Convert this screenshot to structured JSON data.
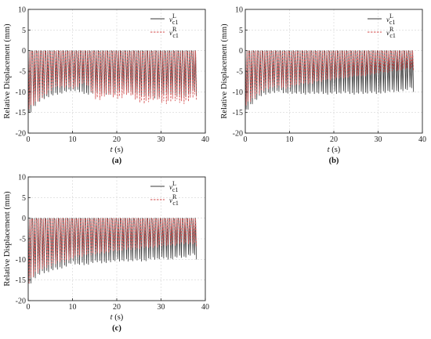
{
  "chart_data": [
    {
      "id": "a",
      "type": "line",
      "panel_label": "(a)",
      "xlabel_var": "t",
      "xlabel_unit": " (s)",
      "ylabel": "Relative Displacement (mm)",
      "xlim": [
        0,
        40
      ],
      "ylim": [
        -20,
        10
      ],
      "xticks": [
        0,
        10,
        20,
        30,
        40
      ],
      "yticks": [
        -20,
        -15,
        -10,
        -5,
        0,
        5,
        10
      ],
      "grid": true,
      "legend_position": "top-right",
      "x": [
        0,
        1,
        2,
        3,
        4,
        5,
        6,
        7,
        8,
        9,
        10,
        11,
        12,
        13,
        14,
        15,
        16,
        17,
        18,
        19,
        20,
        21,
        22,
        23,
        24,
        25,
        26,
        27,
        28,
        29,
        30,
        31,
        32,
        33,
        34,
        35,
        36,
        37,
        38
      ],
      "series": [
        {
          "name": "v",
          "sup": "L",
          "sub": "c1",
          "color": "#3a3a3a",
          "dash": "",
          "values": [
            -18,
            -16,
            -14.5,
            -13.5,
            -13,
            -12.5,
            -12,
            -12,
            -11.5,
            -11,
            -11,
            -11,
            -11.5,
            -12,
            -12,
            -11.5,
            -11.5,
            -12,
            -12,
            -12,
            -11.5,
            -11,
            -11,
            -11.5,
            -12,
            -12,
            -12.5,
            -12.5,
            -13,
            -13,
            -12.5,
            -12,
            -12,
            -12,
            -12.5,
            -13,
            -12.5,
            -11.5,
            -11
          ]
        },
        {
          "name": "v",
          "sup": "R",
          "sub": "c1",
          "color": "#d24a4a",
          "dash": "2.5,1.5",
          "values": [
            -16,
            -15,
            -14,
            -13,
            -12,
            -11,
            -10,
            -10,
            -10,
            -10,
            -10.5,
            -10,
            -9,
            -9,
            -10.5,
            -13,
            -13.5,
            -12.5,
            -12,
            -12.5,
            -13,
            -13,
            -12,
            -12,
            -13,
            -14,
            -14.5,
            -14,
            -13.5,
            -13,
            -14,
            -14.5,
            -14,
            -13.5,
            -14,
            -14.5,
            -14,
            -13,
            -12
          ]
        }
      ]
    },
    {
      "id": "b",
      "type": "line",
      "panel_label": "(b)",
      "xlabel_var": "t",
      "xlabel_unit": " (s)",
      "ylabel": "Relative Displacement (mm)",
      "xlim": [
        0,
        40
      ],
      "ylim": [
        -20,
        10
      ],
      "xticks": [
        0,
        10,
        20,
        30,
        40
      ],
      "yticks": [
        -20,
        -15,
        -10,
        -5,
        0,
        5,
        10
      ],
      "grid": true,
      "legend_position": "top-right",
      "x": [
        0,
        1,
        2,
        3,
        4,
        5,
        6,
        7,
        8,
        9,
        10,
        11,
        12,
        13,
        14,
        15,
        16,
        17,
        18,
        19,
        20,
        21,
        22,
        23,
        24,
        25,
        26,
        27,
        28,
        29,
        30,
        31,
        32,
        33,
        34,
        35,
        36,
        37,
        38
      ],
      "series": [
        {
          "name": "v",
          "sup": "L",
          "sub": "c1",
          "color": "#3a3a3a",
          "dash": "",
          "values": [
            -17,
            -15.5,
            -14,
            -13,
            -12,
            -12,
            -11.5,
            -11.5,
            -11,
            -12,
            -11.5,
            -12,
            -11.5,
            -12,
            -12,
            -11.5,
            -12,
            -11.5,
            -12,
            -12,
            -11.5,
            -12,
            -11.5,
            -11.5,
            -12,
            -12,
            -11.5,
            -12,
            -11.5,
            -11.5,
            -12,
            -11.5,
            -11.5,
            -11,
            -11.5,
            -11,
            -11,
            -10.5,
            -10
          ]
        },
        {
          "name": "v",
          "sup": "R",
          "sub": "c1",
          "color": "#d24a4a",
          "dash": "2.5,1.5",
          "values": [
            -15,
            -14,
            -13,
            -12,
            -11,
            -10.5,
            -10,
            -10,
            -10,
            -10.5,
            -10,
            -9.5,
            -9.5,
            -9,
            -9,
            -9,
            -8.5,
            -8.5,
            -8,
            -8,
            -8,
            -7.5,
            -7.5,
            -7.5,
            -7,
            -7,
            -7,
            -7,
            -6.5,
            -6.5,
            -6,
            -6,
            -6,
            -5.5,
            -5.5,
            -5.5,
            -5,
            -5,
            -5
          ]
        }
      ]
    },
    {
      "id": "c",
      "type": "line",
      "panel_label": "(c)",
      "xlabel_var": "t",
      "xlabel_unit": " (s)",
      "ylabel": "Relative Displacement (mm)",
      "xlim": [
        0,
        40
      ],
      "ylim": [
        -20,
        10
      ],
      "xticks": [
        0,
        10,
        20,
        30,
        40
      ],
      "yticks": [
        -20,
        -15,
        -10,
        -5,
        0,
        5,
        10
      ],
      "grid": true,
      "legend_position": "top-right",
      "x": [
        0,
        1,
        2,
        3,
        4,
        5,
        6,
        7,
        8,
        9,
        10,
        11,
        12,
        13,
        14,
        15,
        16,
        17,
        18,
        19,
        20,
        21,
        22,
        23,
        24,
        25,
        26,
        27,
        28,
        29,
        30,
        31,
        32,
        33,
        34,
        35,
        36,
        37,
        38
      ],
      "series": [
        {
          "name": "v",
          "sup": "L",
          "sub": "c1",
          "color": "#3a3a3a",
          "dash": "",
          "values": [
            -19,
            -17,
            -16,
            -15,
            -15,
            -14.5,
            -14,
            -14,
            -13.5,
            -13,
            -12,
            -13,
            -12.5,
            -13,
            -12.5,
            -12,
            -12,
            -12.5,
            -12,
            -12,
            -11.5,
            -12,
            -11.5,
            -12,
            -11.5,
            -11.5,
            -12,
            -11.5,
            -11,
            -11.5,
            -11,
            -11,
            -11.5,
            -11,
            -10.5,
            -11,
            -10.5,
            -10,
            -10
          ]
        },
        {
          "name": "v",
          "sup": "R",
          "sub": "c1",
          "color": "#d24a4a",
          "dash": "2.5,1.5",
          "values": [
            -18,
            -16,
            -15,
            -14,
            -13.5,
            -13,
            -12.5,
            -12,
            -12,
            -11.5,
            -11,
            -10.5,
            -10.5,
            -10,
            -10,
            -10,
            -9.5,
            -9.5,
            -9.5,
            -9,
            -9,
            -9,
            -8.5,
            -8.5,
            -8.5,
            -8.5,
            -8,
            -8,
            -8,
            -8,
            -7.5,
            -7.5,
            -7.5,
            -7.5,
            -7,
            -7,
            -7,
            -7,
            -7
          ]
        }
      ]
    }
  ]
}
